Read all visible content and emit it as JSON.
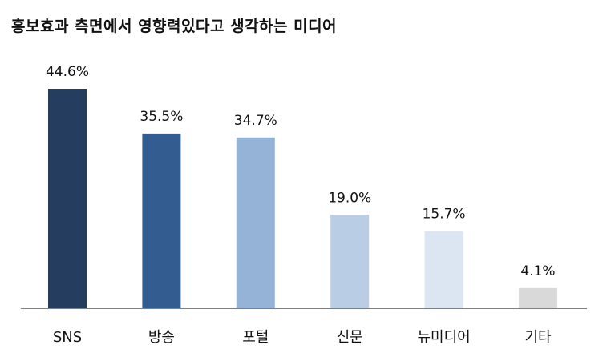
{
  "chart_data": {
    "type": "bar",
    "title": "홍보효과 측면에서 영향력있다고 생각하는 미디어",
    "xlabel": "",
    "ylabel": "",
    "categories": [
      "SNS",
      "방송",
      "포털",
      "신문",
      "뉴미디어",
      "기타"
    ],
    "values": [
      44.6,
      35.5,
      34.7,
      19.0,
      15.7,
      4.1
    ],
    "value_labels": [
      "44.6%",
      "35.5%",
      "34.7%",
      "19.0%",
      "15.7%",
      "4.1%"
    ],
    "bar_colors": [
      "#253D5E",
      "#335D91",
      "#95B3D7",
      "#B9CDE4",
      "#DCE6F2",
      "#D9D9D9"
    ],
    "axis_color": "#7F7F7F",
    "ylim": [
      0,
      44.6
    ],
    "grid": false,
    "legend": "none"
  }
}
